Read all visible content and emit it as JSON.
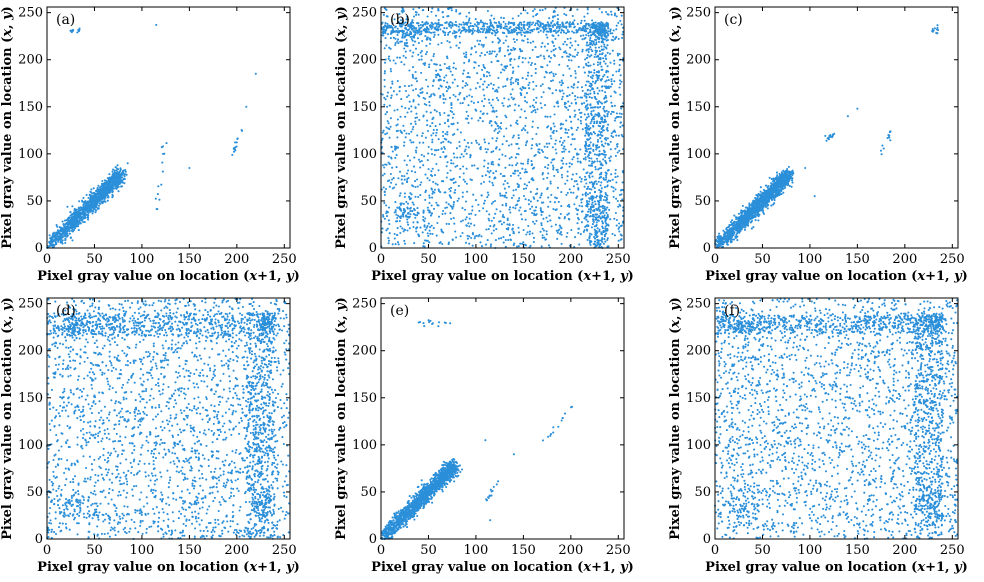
{
  "chart_data": [
    {
      "type": "scatter",
      "panel_label": "(a)",
      "pattern": "diagonal",
      "title": "",
      "xlabel": "Pixel gray value on location (x+1, y)",
      "ylabel": "Pixel gray value on location (x, y)",
      "xlim": [
        0,
        256
      ],
      "ylim": [
        0,
        256
      ],
      "xticks": [
        0,
        50,
        100,
        150,
        200,
        250
      ],
      "yticks": [
        0,
        50,
        100,
        150,
        200,
        250
      ],
      "grid": false,
      "color": "#2b8fd9",
      "clusters": [
        {
          "x": [
            0,
            80
          ],
          "y": [
            0,
            78
          ],
          "density": "high"
        },
        {
          "x": [
            25,
            35
          ],
          "y": [
            230,
            232
          ],
          "density": "low"
        },
        {
          "x": [
            115,
            125
          ],
          "y": [
            35,
            120
          ],
          "density": "low"
        },
        {
          "x": [
            195,
            205
          ],
          "y": [
            100,
            125
          ],
          "density": "low"
        }
      ],
      "outliers": [
        [
          115,
          237
        ],
        [
          220,
          185
        ],
        [
          210,
          150
        ],
        [
          85,
          90
        ],
        [
          150,
          85
        ]
      ]
    },
    {
      "type": "scatter",
      "panel_label": "(b)",
      "pattern": "uniform",
      "title": "",
      "xlabel": "Pixel gray value on location (x+1, y)",
      "ylabel": "Pixel gray value on location (x, y)",
      "xlim": [
        0,
        256
      ],
      "ylim": [
        0,
        256
      ],
      "xticks": [
        0,
        50,
        100,
        150,
        200,
        250
      ],
      "yticks": [
        0,
        50,
        100,
        150,
        200,
        250
      ],
      "grid": false,
      "color": "#2b8fd9",
      "clusters": [
        {
          "x": [
            0,
            256
          ],
          "y": [
            0,
            256
          ],
          "density": "medium"
        },
        {
          "x": [
            0,
            240
          ],
          "y": [
            228,
            240
          ],
          "density": "high"
        },
        {
          "x": [
            215,
            240
          ],
          "y": [
            0,
            240
          ],
          "density": "high"
        }
      ],
      "outliers": []
    },
    {
      "type": "scatter",
      "panel_label": "(c)",
      "pattern": "diagonal",
      "title": "",
      "xlabel": "Pixel gray value on location (x+1, y)",
      "ylabel": "Pixel gray value on location (x, y)",
      "xlim": [
        0,
        256
      ],
      "ylim": [
        0,
        256
      ],
      "xticks": [
        0,
        50,
        100,
        150,
        200,
        250
      ],
      "yticks": [
        0,
        50,
        100,
        150,
        200,
        250
      ],
      "grid": false,
      "color": "#2b8fd9",
      "clusters": [
        {
          "x": [
            0,
            80
          ],
          "y": [
            0,
            78
          ],
          "density": "high"
        },
        {
          "x": [
            228,
            235
          ],
          "y": [
            228,
            236
          ],
          "density": "low"
        },
        {
          "x": [
            175,
            185
          ],
          "y": [
            100,
            125
          ],
          "density": "low"
        },
        {
          "x": [
            115,
            125
          ],
          "y": [
            115,
            120
          ],
          "density": "low"
        }
      ],
      "outliers": [
        [
          150,
          148
        ],
        [
          140,
          140
        ],
        [
          105,
          55
        ],
        [
          95,
          85
        ]
      ]
    },
    {
      "type": "scatter",
      "panel_label": "(d)",
      "pattern": "uniform",
      "title": "",
      "xlabel": "Pixel gray value on location (x+1, y)",
      "ylabel": "Pixel gray value on location (x, y)",
      "xlim": [
        0,
        256
      ],
      "ylim": [
        0,
        256
      ],
      "xticks": [
        0,
        50,
        100,
        150,
        200,
        250
      ],
      "yticks": [
        0,
        50,
        100,
        150,
        200,
        250
      ],
      "grid": false,
      "color": "#2b8fd9",
      "clusters": [
        {
          "x": [
            0,
            256
          ],
          "y": [
            0,
            256
          ],
          "density": "medium"
        },
        {
          "x": [
            0,
            240
          ],
          "y": [
            215,
            240
          ],
          "density": "high"
        },
        {
          "x": [
            210,
            240
          ],
          "y": [
            0,
            240
          ],
          "density": "high"
        }
      ],
      "outliers": []
    },
    {
      "type": "scatter",
      "panel_label": "(e)",
      "pattern": "diagonal",
      "title": "",
      "xlabel": "Pixel gray value on location (x+1, y)",
      "ylabel": "Pixel gray value on location (x, y)",
      "xlim": [
        0,
        256
      ],
      "ylim": [
        0,
        256
      ],
      "xticks": [
        0,
        50,
        100,
        150,
        200,
        250
      ],
      "yticks": [
        0,
        50,
        100,
        150,
        200,
        250
      ],
      "grid": false,
      "color": "#2b8fd9",
      "clusters": [
        {
          "x": [
            0,
            80
          ],
          "y": [
            0,
            78
          ],
          "density": "high"
        },
        {
          "x": [
            40,
            80
          ],
          "y": [
            228,
            232
          ],
          "density": "low"
        },
        {
          "x": [
            105,
            125
          ],
          "y": [
            30,
            65
          ],
          "density": "low"
        },
        {
          "x": [
            170,
            205
          ],
          "y": [
            100,
            145
          ],
          "density": "low"
        }
      ],
      "outliers": [
        [
          110,
          105
        ],
        [
          140,
          90
        ],
        [
          115,
          20
        ]
      ]
    },
    {
      "type": "scatter",
      "panel_label": "(f)",
      "pattern": "uniform",
      "title": "",
      "xlabel": "Pixel gray value on location (x+1, y)",
      "ylabel": "Pixel gray value on location (x, y)",
      "xlim": [
        0,
        256
      ],
      "ylim": [
        0,
        256
      ],
      "xticks": [
        0,
        50,
        100,
        150,
        200,
        250
      ],
      "yticks": [
        0,
        50,
        100,
        150,
        200,
        250
      ],
      "grid": false,
      "color": "#2b8fd9",
      "clusters": [
        {
          "x": [
            0,
            256
          ],
          "y": [
            0,
            256
          ],
          "density": "medium"
        },
        {
          "x": [
            0,
            240
          ],
          "y": [
            218,
            238
          ],
          "density": "high"
        },
        {
          "x": [
            210,
            240
          ],
          "y": [
            0,
            240
          ],
          "density": "high"
        }
      ],
      "outliers": []
    }
  ]
}
